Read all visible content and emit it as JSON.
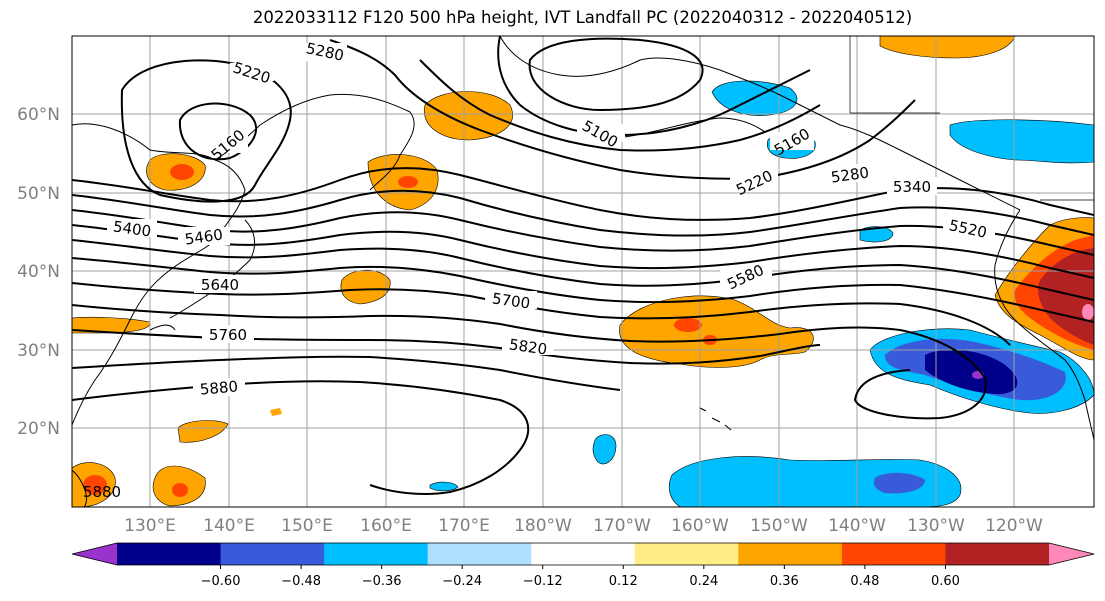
{
  "title": "2022033112 F120 500 hPa height, IVT Landfall PC (2022040312 - 2022040512)",
  "lat_labels": [
    "60°N",
    "50°N",
    "40°N",
    "30°N",
    "20°N"
  ],
  "lon_labels": [
    "130°E",
    "140°E",
    "150°E",
    "160°E",
    "170°E",
    "180°W",
    "170°W",
    "160°W",
    "150°W",
    "140°W",
    "130°W",
    "120°W"
  ],
  "contour_labels": {
    "c5280a": "5280",
    "c5220a": "5220",
    "c5160a": "5160",
    "c5100": "5100",
    "c5160b": "5160",
    "c5220b": "5220",
    "c5280b": "5280",
    "c5340": "5340",
    "c5400": "5400",
    "c5460": "5460",
    "c5520": "5520",
    "c5580": "5580",
    "c5640": "5640",
    "c5700": "5700",
    "c5760": "5760",
    "c5820": "5820",
    "c5880a": "5880",
    "c5880b": "5880"
  },
  "colorbar": {
    "colors": [
      "#9933cc",
      "#00008b",
      "#3a5bd9",
      "#00bfff",
      "#b0e0ff",
      "#ffffff",
      "#ffee88",
      "#ffa500",
      "#ff4500",
      "#b22222",
      "#ff88bb"
    ],
    "ticks": [
      "−0.60",
      "−0.48",
      "−0.36",
      "−0.24",
      "−0.12",
      "0.12",
      "0.24",
      "0.36",
      "0.48",
      "0.60"
    ]
  }
}
